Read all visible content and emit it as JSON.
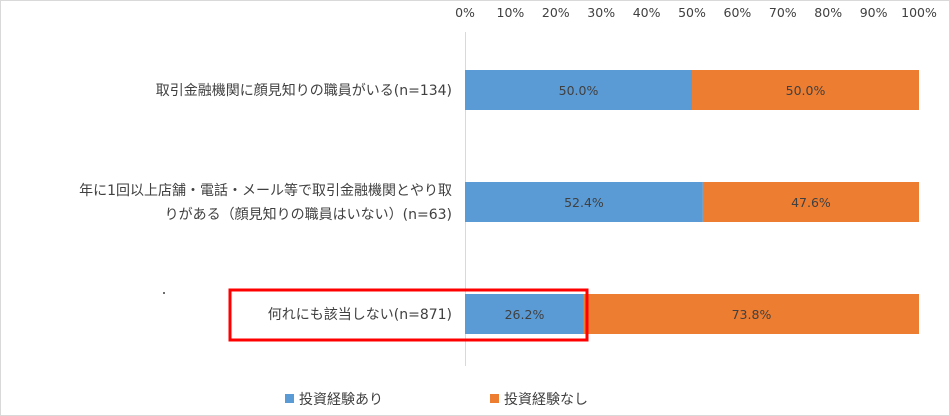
{
  "chart_data": {
    "type": "bar",
    "stacked": "percent",
    "orientation": "horizontal",
    "categories": [
      [
        "取引金融機関に顔見知りの職員がいる(n=134)"
      ],
      [
        "年に1回以上店舗・電話・メール等で取引金融機関とやり取",
        "りがある（顔見知りの職員はいない）(n=63)"
      ],
      [
        "何れにも該当しない(n=871)"
      ]
    ],
    "series": [
      {
        "name": "投資経験あり",
        "color": "#5b9bd5",
        "values": [
          50.0,
          52.4,
          26.2
        ],
        "labels": [
          "50.0%",
          "52.4%",
          "26.2%"
        ]
      },
      {
        "name": "投資経験なし",
        "color": "#ed7d31",
        "values": [
          50.0,
          47.6,
          73.8
        ],
        "labels": [
          "50.0%",
          "47.6%",
          "73.8%"
        ]
      }
    ],
    "x_ticks": [
      "0%",
      "10%",
      "20%",
      "30%",
      "40%",
      "50%",
      "60%",
      "70%",
      "80%",
      "90%",
      "100%"
    ],
    "xlim": [
      0,
      100
    ],
    "legend": "bottom-center",
    "grid": false,
    "highlight": {
      "category_index": 2,
      "color": "#ff0000"
    }
  }
}
